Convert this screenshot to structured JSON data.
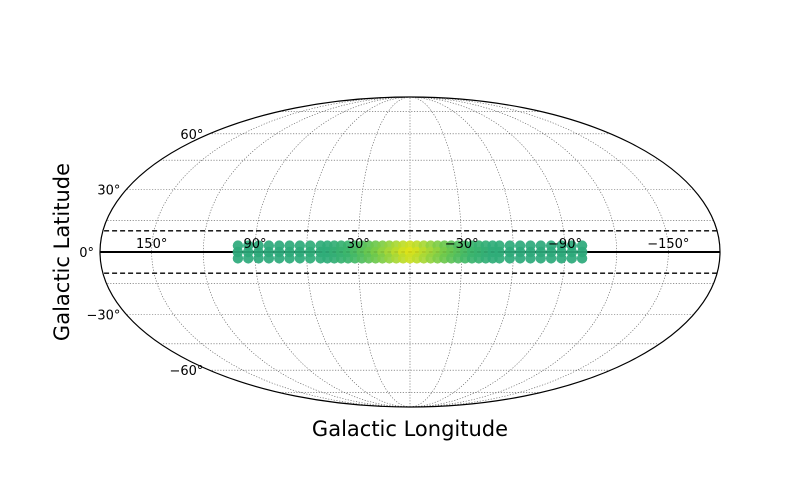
{
  "chart_data": {
    "type": "scatter",
    "projection": "mollweide",
    "title": "",
    "xlabel": "Galactic Longitude",
    "ylabel": "Galactic Latitude",
    "xlim": [
      -180,
      180
    ],
    "ylim": [
      -90,
      90
    ],
    "grid": true,
    "longitude_direction": "decreasing to the right",
    "longitude_ticks": [
      {
        "value": 150,
        "label": "150°"
      },
      {
        "value": 90,
        "label": "90°"
      },
      {
        "value": 30,
        "label": "30°"
      },
      {
        "value": -30,
        "label": "−30°"
      },
      {
        "value": -90,
        "label": "−90°"
      },
      {
        "value": -150,
        "label": "−150°"
      }
    ],
    "latitude_ticks": [
      {
        "value": 60,
        "label": "60°"
      },
      {
        "value": 30,
        "label": "30°"
      },
      {
        "value": 0,
        "label": "0°"
      },
      {
        "value": -30,
        "label": "−30°"
      },
      {
        "value": -60,
        "label": "−60°"
      }
    ],
    "equator_line": {
      "latitude": 0,
      "style": "solid",
      "color": "#000000"
    },
    "bounding_lines": [
      {
        "latitude": 10,
        "style": "dashed",
        "color": "#000000"
      },
      {
        "latitude": -10,
        "style": "dashed",
        "color": "#000000"
      }
    ],
    "colormap": [
      "#2ca97b",
      "#3db66b",
      "#6cc84d",
      "#a8d836",
      "#dde318"
    ],
    "points": [
      [
        100,
        3,
        0
      ],
      [
        100,
        0,
        0
      ],
      [
        100,
        -3,
        0
      ],
      [
        94,
        3,
        0
      ],
      [
        94,
        0,
        0
      ],
      [
        94,
        -3,
        0
      ],
      [
        88,
        3,
        0
      ],
      [
        88,
        0,
        0
      ],
      [
        88,
        -3,
        0
      ],
      [
        82,
        3,
        0
      ],
      [
        82,
        0,
        0
      ],
      [
        82,
        -3,
        0
      ],
      [
        76,
        3,
        0
      ],
      [
        76,
        0,
        0
      ],
      [
        76,
        -3,
        0
      ],
      [
        70,
        3,
        0.02
      ],
      [
        70,
        0,
        0.02
      ],
      [
        70,
        -3,
        0.02
      ],
      [
        64,
        3,
        0.02
      ],
      [
        64,
        0,
        0.02
      ],
      [
        64,
        -3,
        0.02
      ],
      [
        58,
        3,
        0.05
      ],
      [
        58,
        0,
        0.05
      ],
      [
        58,
        -3,
        0.05
      ],
      [
        52,
        3,
        0.05
      ],
      [
        52,
        0,
        0.05
      ],
      [
        52,
        -3,
        0.05
      ],
      [
        48,
        3,
        0.05
      ],
      [
        48,
        0,
        0.05
      ],
      [
        48,
        -3,
        0.05
      ],
      [
        44,
        3,
        0.1
      ],
      [
        44,
        0,
        0.12
      ],
      [
        44,
        -3,
        0.1
      ],
      [
        40,
        3,
        0.15
      ],
      [
        40,
        0,
        0.18
      ],
      [
        40,
        -3,
        0.15
      ],
      [
        36,
        3,
        0.2
      ],
      [
        36,
        0,
        0.25
      ],
      [
        36,
        -3,
        0.2
      ],
      [
        32,
        3,
        0.28
      ],
      [
        32,
        0,
        0.32
      ],
      [
        32,
        -3,
        0.28
      ],
      [
        28,
        3,
        0.35
      ],
      [
        28,
        0,
        0.4
      ],
      [
        28,
        -3,
        0.35
      ],
      [
        24,
        3,
        0.42
      ],
      [
        24,
        0,
        0.48
      ],
      [
        24,
        -3,
        0.42
      ],
      [
        20,
        3,
        0.5
      ],
      [
        20,
        0,
        0.56
      ],
      [
        20,
        -3,
        0.5
      ],
      [
        16,
        3,
        0.58
      ],
      [
        16,
        0,
        0.65
      ],
      [
        16,
        -3,
        0.58
      ],
      [
        12,
        3,
        0.66
      ],
      [
        12,
        0,
        0.74
      ],
      [
        12,
        -3,
        0.66
      ],
      [
        8,
        3,
        0.75
      ],
      [
        8,
        0,
        0.84
      ],
      [
        8,
        -3,
        0.75
      ],
      [
        4,
        3,
        0.85
      ],
      [
        4,
        0,
        0.95
      ],
      [
        4,
        -3,
        0.85
      ],
      [
        0,
        3,
        0.92
      ],
      [
        0,
        0,
        1.0
      ],
      [
        0,
        -3,
        0.92
      ],
      [
        -4,
        3,
        0.85
      ],
      [
        -4,
        0,
        0.95
      ],
      [
        -4,
        -3,
        0.85
      ],
      [
        -8,
        3,
        0.75
      ],
      [
        -8,
        0,
        0.84
      ],
      [
        -8,
        -3,
        0.75
      ],
      [
        -12,
        3,
        0.66
      ],
      [
        -12,
        0,
        0.74
      ],
      [
        -12,
        -3,
        0.66
      ],
      [
        -16,
        3,
        0.58
      ],
      [
        -16,
        0,
        0.65
      ],
      [
        -16,
        -3,
        0.58
      ],
      [
        -20,
        3,
        0.5
      ],
      [
        -20,
        0,
        0.56
      ],
      [
        -20,
        -3,
        0.5
      ],
      [
        -24,
        3,
        0.42
      ],
      [
        -24,
        0,
        0.48
      ],
      [
        -24,
        -3,
        0.42
      ],
      [
        -28,
        3,
        0.35
      ],
      [
        -28,
        0,
        0.4
      ],
      [
        -28,
        -3,
        0.35
      ],
      [
        -32,
        3,
        0.28
      ],
      [
        -32,
        0,
        0.32
      ],
      [
        -32,
        -3,
        0.28
      ],
      [
        -36,
        3,
        0.2
      ],
      [
        -36,
        0,
        0.25
      ],
      [
        -36,
        -3,
        0.2
      ],
      [
        -40,
        3,
        0.15
      ],
      [
        -40,
        0,
        0.18
      ],
      [
        -40,
        -3,
        0.15
      ],
      [
        -44,
        3,
        0.1
      ],
      [
        -44,
        0,
        0.12
      ],
      [
        -44,
        -3,
        0.1
      ],
      [
        -48,
        3,
        0.05
      ],
      [
        -48,
        0,
        0.05
      ],
      [
        -48,
        -3,
        0.05
      ],
      [
        -52,
        3,
        0.05
      ],
      [
        -52,
        0,
        0.05
      ],
      [
        -52,
        -3,
        0.05
      ],
      [
        -58,
        3,
        0.02
      ],
      [
        -58,
        0,
        0.02
      ],
      [
        -58,
        -3,
        0.02
      ],
      [
        -64,
        3,
        0
      ],
      [
        -64,
        0,
        0
      ],
      [
        -64,
        -3,
        0
      ],
      [
        -70,
        3,
        0
      ],
      [
        -70,
        0,
        0
      ],
      [
        -70,
        -3,
        0
      ],
      [
        -76,
        3,
        0
      ],
      [
        -76,
        0,
        0
      ],
      [
        -76,
        -3,
        0
      ],
      [
        -82,
        3,
        0
      ],
      [
        -82,
        0,
        0
      ],
      [
        -82,
        -3,
        0
      ],
      [
        -88,
        3,
        0
      ],
      [
        -88,
        0,
        0
      ],
      [
        -88,
        -3,
        0
      ],
      [
        -94,
        3,
        0
      ],
      [
        -94,
        0,
        0
      ],
      [
        -94,
        -3,
        0
      ],
      [
        -100,
        3,
        0
      ],
      [
        -100,
        0,
        0
      ],
      [
        -100,
        -3,
        0
      ]
    ]
  }
}
